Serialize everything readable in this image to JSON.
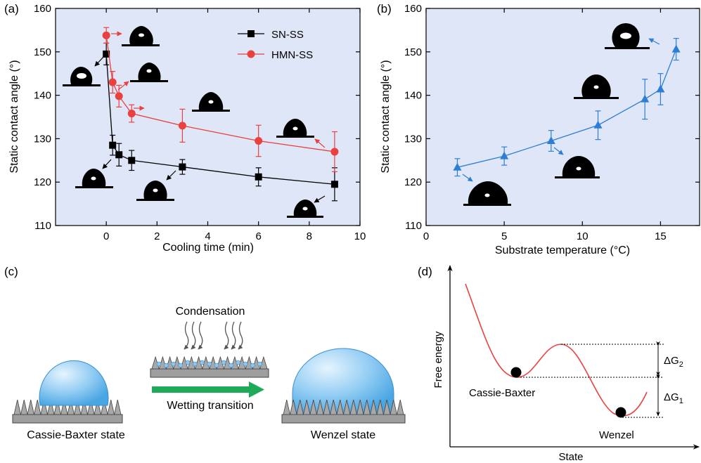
{
  "colors": {
    "sn": "#000000",
    "hmn": "#e8413e",
    "temp": "#2c7fd4",
    "panel_bg": "#dfe6f7",
    "energy_curve": "#e8413e",
    "arrow_green": "#1faa5a"
  },
  "chart_data": [
    {
      "panel": "(a)",
      "type": "scatter",
      "xlabel": "Cooling time (min)",
      "ylabel": "Static contact angle (°)",
      "xlim": [
        -2,
        10
      ],
      "ylim": [
        110,
        160
      ],
      "x_ticks": [
        0,
        2,
        4,
        6,
        8,
        10
      ],
      "y_ticks": [
        110,
        120,
        130,
        140,
        150,
        160
      ],
      "legend_position": "top-right",
      "series": [
        {
          "name": "SN-SS",
          "marker": "square",
          "color": "#000000",
          "x": [
            0,
            0.25,
            0.5,
            1,
            3,
            6,
            9
          ],
          "y": [
            149.5,
            128.5,
            126.3,
            125,
            123.5,
            121.2,
            119.5
          ],
          "err": [
            2.5,
            2.3,
            2.6,
            2.3,
            1.7,
            2.1,
            3.8
          ]
        },
        {
          "name": "HMN-SS",
          "marker": "circle",
          "color": "#e8413e",
          "x": [
            0,
            0.25,
            0.5,
            1,
            3,
            6,
            9
          ],
          "y": [
            153.8,
            143,
            139.8,
            135.8,
            133,
            129.5,
            127
          ],
          "err": [
            1.8,
            2.5,
            2.5,
            2,
            3.8,
            3.6,
            4.6
          ]
        }
      ]
    },
    {
      "panel": "(b)",
      "type": "line",
      "xlabel": "Substrate temperature (°C)",
      "ylabel": "Static contact angle (°)",
      "xlim": [
        0,
        17.5
      ],
      "ylim": [
        110,
        160
      ],
      "x_ticks": [
        0,
        5,
        10,
        15
      ],
      "y_ticks": [
        110,
        120,
        130,
        140,
        150,
        160
      ],
      "series": [
        {
          "marker": "triangle",
          "color": "#2c7fd4",
          "x": [
            2,
            5,
            8,
            11,
            14,
            15,
            16
          ],
          "y": [
            123.4,
            126,
            129.5,
            133.1,
            139.1,
            141.4,
            150.6
          ],
          "err": [
            2,
            2.1,
            2.4,
            3.3,
            4.6,
            3.6,
            2.5
          ]
        }
      ]
    }
  ],
  "panel_c": {
    "panel": "(c)",
    "left_caption": "Cassie-Baxter state",
    "condensation_label": "Condensation",
    "transition_label": "Wetting transition",
    "right_caption": "Wenzel state"
  },
  "panel_d": {
    "panel": "(d)",
    "ylabel": "Free energy",
    "xlabel": "State",
    "state1": "Cassie-Baxter",
    "state2": "Wenzel",
    "dg2_base": "ΔG",
    "dg2_sub": "2",
    "dg1_base": "ΔG",
    "dg1_sub": "1"
  }
}
